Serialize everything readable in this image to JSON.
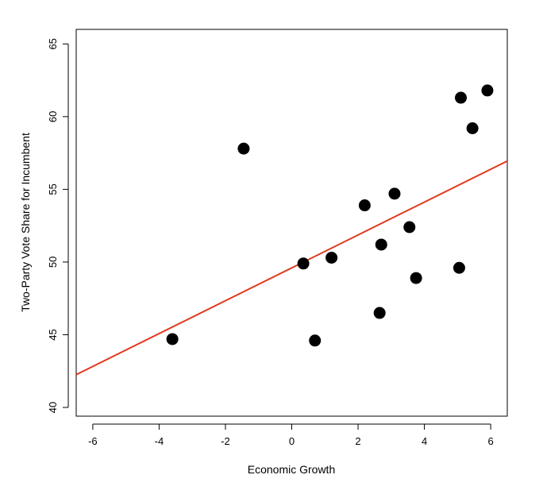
{
  "chart_data": {
    "type": "scatter",
    "xlabel": "Economic Growth",
    "ylabel": "Two-Party Vote Share for Incumbent",
    "xlim": [
      -6.5,
      6.5
    ],
    "ylim": [
      39.4,
      66.0
    ],
    "xticks": [
      -6,
      -4,
      -2,
      0,
      2,
      4,
      6
    ],
    "yticks": [
      40,
      45,
      50,
      55,
      60,
      65
    ],
    "grid": false,
    "point_color": "#000000",
    "line_color": "#e03a1e",
    "points": [
      {
        "x": -3.6,
        "y": 44.7
      },
      {
        "x": -1.45,
        "y": 57.8
      },
      {
        "x": 0.35,
        "y": 49.9
      },
      {
        "x": 0.7,
        "y": 44.6
      },
      {
        "x": 1.2,
        "y": 50.3
      },
      {
        "x": 2.2,
        "y": 53.9
      },
      {
        "x": 2.65,
        "y": 46.5
      },
      {
        "x": 2.7,
        "y": 51.2
      },
      {
        "x": 3.1,
        "y": 54.7
      },
      {
        "x": 3.55,
        "y": 52.4
      },
      {
        "x": 3.75,
        "y": 48.9
      },
      {
        "x": 5.05,
        "y": 49.6
      },
      {
        "x": 5.1,
        "y": 61.3
      },
      {
        "x": 5.45,
        "y": 59.2
      },
      {
        "x": 5.9,
        "y": 61.8
      }
    ],
    "fit_line": {
      "intercept": 49.6,
      "slope": 1.13
    }
  }
}
